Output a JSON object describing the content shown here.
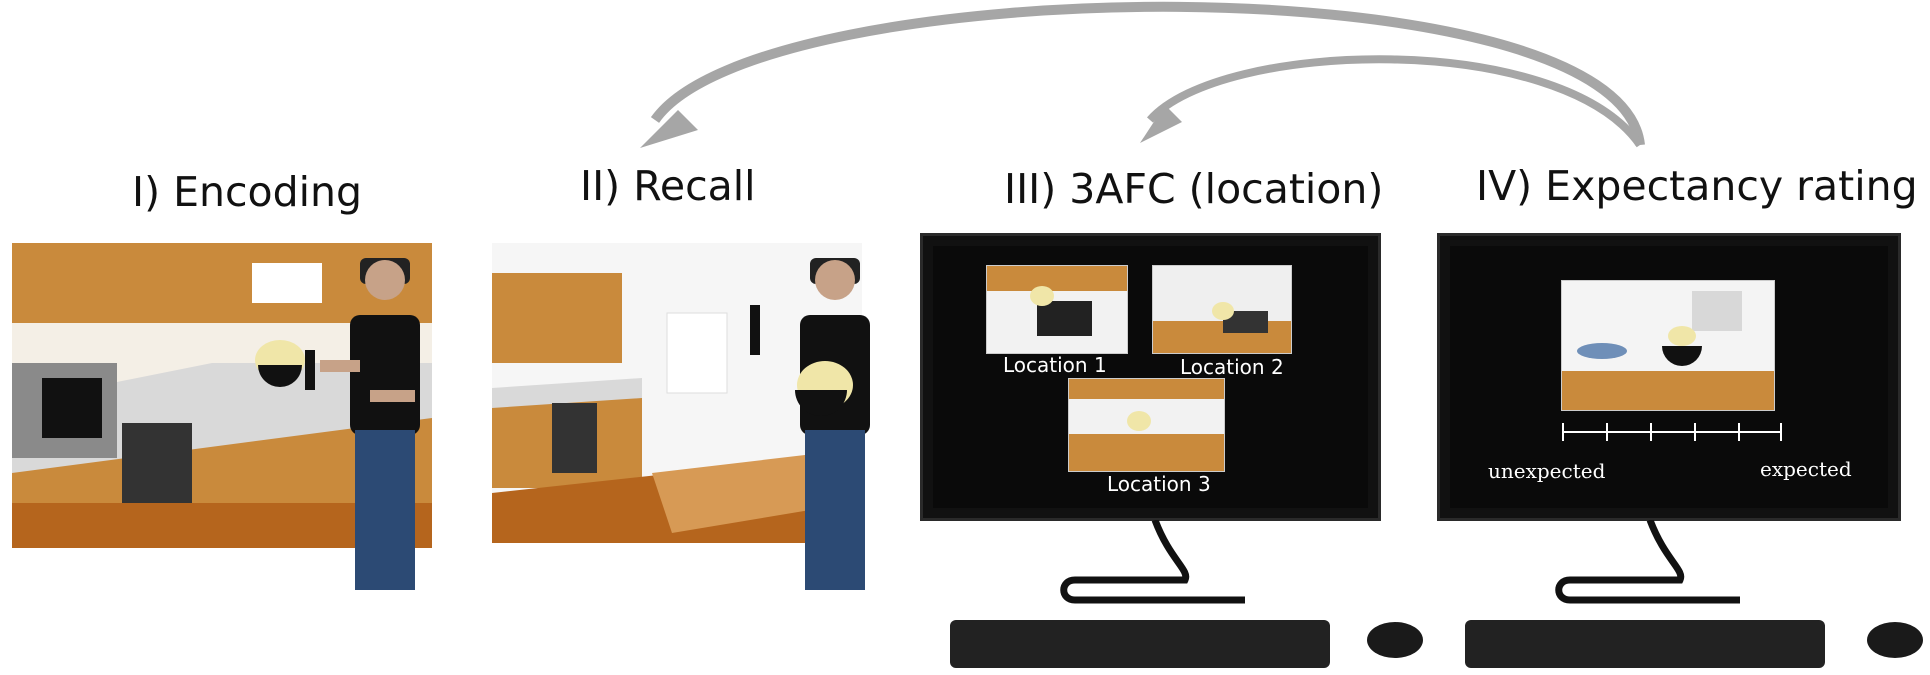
{
  "stages": [
    {
      "label": "I) Encoding"
    },
    {
      "label": "II) Recall"
    },
    {
      "label": "III) 3AFC (location)"
    },
    {
      "label": "IV) Expectancy rating"
    }
  ],
  "afc": {
    "options": [
      {
        "label": "Location 1"
      },
      {
        "label": "Location 2"
      },
      {
        "label": "Location 3"
      }
    ]
  },
  "rating": {
    "left_label": "unexpected",
    "right_label": "expected",
    "tick_count": 6
  },
  "colors": {
    "arrow": "#a6a6a6",
    "wood": "#c98a3c",
    "counter": "#d9d9d9",
    "screen": "#0a0a0a"
  }
}
